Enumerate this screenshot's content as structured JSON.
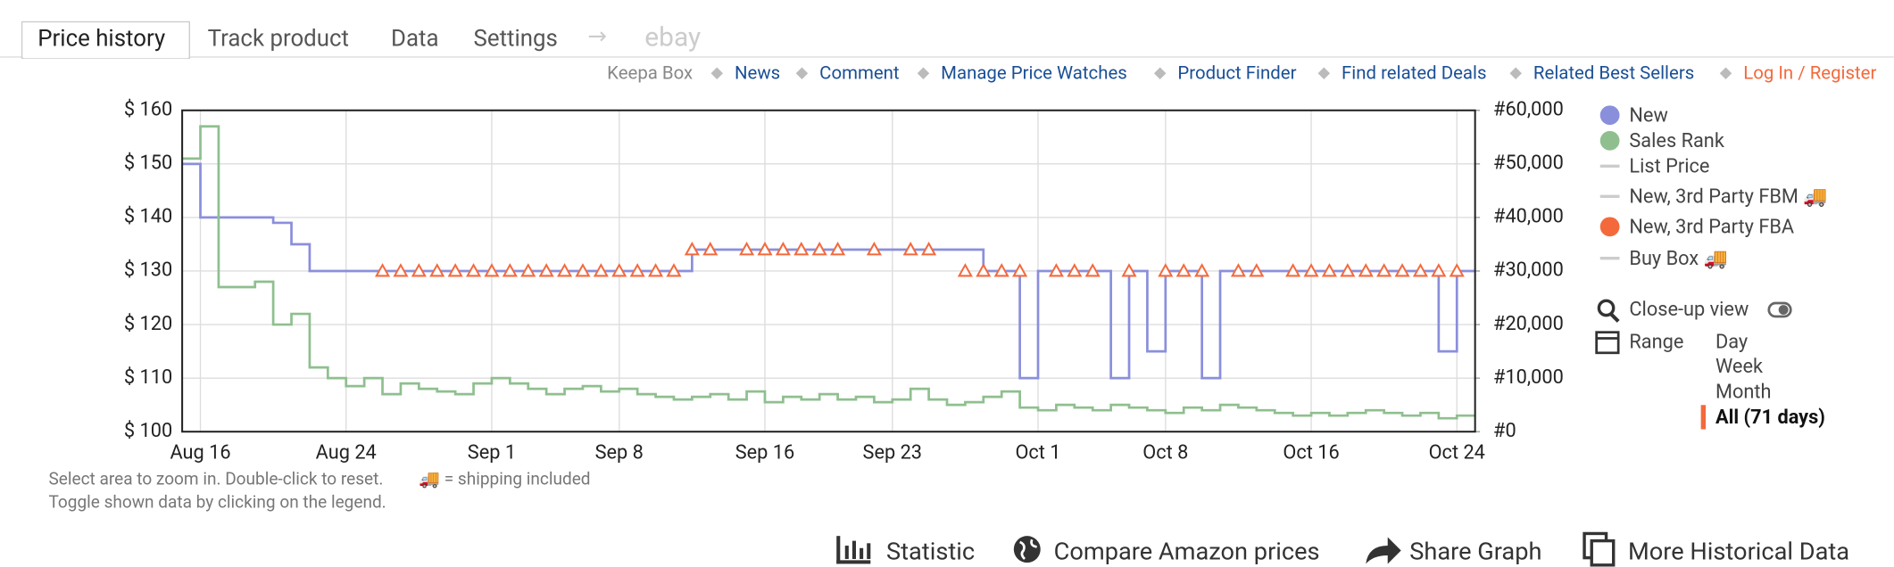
{
  "tabs": [
    "Price history",
    "Track product",
    "Data",
    "Settings",
    "→",
    "ebay"
  ],
  "links": [
    "Keepa Box",
    "News",
    "Comment",
    "Manage Price Watches",
    "Product Finder",
    "Find related Deals",
    "Related Best Sellers",
    "Log In / Register"
  ],
  "controls": {
    "closeup": "Close-up view",
    "range": "Range",
    "ranges": [
      "Day",
      "Week",
      "Month",
      "All (71 days)"
    ]
  },
  "notes": [
    "Select area to zoom in. Double-click to reset.",
    "🚚 = shipping included",
    "Toggle shown data by clicking on the legend."
  ],
  "buttons": [
    "Statistic",
    "Compare Amazon prices",
    "Share Graph",
    "More Historical Data"
  ],
  "chart_data": {
    "type": "line",
    "grid": true,
    "xlim": [
      "Aug 15",
      "Oct 25"
    ],
    "xticks": [
      "Aug 16",
      "Aug 24",
      "Sep 1",
      "Sep 8",
      "Sep 16",
      "Sep 23",
      "Oct 1",
      "Oct 8",
      "Oct 16",
      "Oct 24"
    ],
    "ylim": [
      100,
      160
    ],
    "yticks": [
      {
        "value": 100,
        "label": "$ 100"
      },
      {
        "value": 110,
        "label": "$ 110"
      },
      {
        "value": 120,
        "label": "$ 120"
      },
      {
        "value": 130,
        "label": "$ 130"
      },
      {
        "value": 140,
        "label": "$ 140"
      },
      {
        "value": 150,
        "label": "$ 150"
      },
      {
        "value": 160,
        "label": "$ 160"
      }
    ],
    "y2lim": [
      0,
      60000
    ],
    "y2ticks": [
      {
        "value": 0,
        "label": "#0"
      },
      {
        "value": 10000,
        "label": "#10,000"
      },
      {
        "value": 20000,
        "label": "#20,000"
      },
      {
        "value": 30000,
        "label": "#30,000"
      },
      {
        "value": 40000,
        "label": "#40,000"
      },
      {
        "value": 50000,
        "label": "#50,000"
      },
      {
        "value": 60000,
        "label": "#60,000"
      }
    ],
    "series": [
      {
        "name": "New",
        "color": "#8a8fdc",
        "x": [
          "Aug 15",
          "Aug 16",
          "Aug 20",
          "Aug 21",
          "Aug 22",
          "Sep 12",
          "Sep 28",
          "Sep 30",
          "Oct 1",
          "Oct 5",
          "Oct 6",
          "Oct 7",
          "Oct 8",
          "Oct 10",
          "Oct 11",
          "Oct 23",
          "Oct 24"
        ],
        "values": [
          150,
          140,
          139,
          135,
          130,
          134,
          130,
          110,
          130,
          110,
          130,
          115,
          130,
          110,
          130,
          115,
          130
        ]
      },
      {
        "name": "Sales Rank",
        "color": "#8fbf8f",
        "axis": "y2",
        "x": [
          "Aug 15",
          "Aug 16",
          "Aug 17",
          "Aug 19",
          "Aug 20",
          "Aug 21",
          "Aug 22",
          "Aug 23",
          "Aug 24",
          "Aug 25",
          "Aug 26",
          "Aug 27",
          "Aug 28",
          "Aug 29",
          "Aug 30",
          "Aug 31",
          "Sep 1",
          "Sep 2",
          "Sep 3",
          "Sep 4",
          "Sep 5",
          "Sep 6",
          "Sep 7",
          "Sep 8",
          "Sep 9",
          "Sep 10",
          "Sep 11",
          "Sep 12",
          "Sep 13",
          "Sep 14",
          "Sep 15",
          "Sep 16",
          "Sep 17",
          "Sep 18",
          "Sep 19",
          "Sep 20",
          "Sep 21",
          "Sep 22",
          "Sep 23",
          "Sep 24",
          "Sep 25",
          "Sep 26",
          "Sep 27",
          "Sep 28",
          "Sep 29",
          "Sep 30",
          "Oct 1",
          "Oct 2",
          "Oct 3",
          "Oct 4",
          "Oct 5",
          "Oct 6",
          "Oct 7",
          "Oct 8",
          "Oct 9",
          "Oct 10",
          "Oct 11",
          "Oct 12",
          "Oct 13",
          "Oct 14",
          "Oct 15",
          "Oct 16",
          "Oct 17",
          "Oct 18",
          "Oct 19",
          "Oct 20",
          "Oct 21",
          "Oct 22",
          "Oct 23",
          "Oct 24"
        ],
        "values": [
          51000,
          57000,
          27000,
          28000,
          20000,
          22000,
          12000,
          10000,
          8500,
          10000,
          7000,
          9000,
          8000,
          7500,
          7000,
          9000,
          10000,
          9000,
          8000,
          7000,
          8000,
          8500,
          7500,
          8000,
          7000,
          6500,
          6000,
          6500,
          7000,
          6000,
          7500,
          5500,
          6500,
          6000,
          7000,
          6000,
          6500,
          5500,
          6000,
          8000,
          6000,
          5000,
          5500,
          6500,
          7500,
          4500,
          4000,
          5000,
          4500,
          4000,
          5000,
          4500,
          4000,
          3500,
          4500,
          4000,
          5000,
          4500,
          4000,
          3500,
          3000,
          3500,
          3000,
          3500,
          4000,
          3500,
          3000,
          3500,
          2500,
          3000
        ]
      },
      {
        "name": "List Price",
        "color": "#cccccc"
      },
      {
        "name": "New, 3rd Party FBM 🚚",
        "color": "#cccccc"
      },
      {
        "name": "New, 3rd Party FBA",
        "color": "#f4693c",
        "type": "scatter",
        "x": [
          "Aug 26",
          "Aug 27",
          "Aug 28",
          "Aug 29",
          "Aug 30",
          "Aug 31",
          "Sep 1",
          "Sep 2",
          "Sep 3",
          "Sep 4",
          "Sep 5",
          "Sep 6",
          "Sep 7",
          "Sep 8",
          "Sep 9",
          "Sep 10",
          "Sep 11",
          "Sep 12",
          "Sep 13",
          "Sep 15",
          "Sep 16",
          "Sep 17",
          "Sep 18",
          "Sep 19",
          "Sep 20",
          "Sep 22",
          "Sep 24",
          "Sep 25",
          "Sep 27",
          "Sep 28",
          "Sep 29",
          "Sep 30",
          "Oct 2",
          "Oct 3",
          "Oct 4",
          "Oct 6",
          "Oct 8",
          "Oct 9",
          "Oct 10",
          "Oct 12",
          "Oct 13",
          "Oct 15",
          "Oct 16",
          "Oct 17",
          "Oct 18",
          "Oct 19",
          "Oct 20",
          "Oct 21",
          "Oct 22",
          "Oct 23",
          "Oct 24"
        ],
        "values": [
          130,
          130,
          130,
          130,
          130,
          130,
          130,
          130,
          130,
          130,
          130,
          130,
          130,
          130,
          130,
          130,
          130,
          134,
          134,
          134,
          134,
          134,
          134,
          134,
          134,
          134,
          134,
          134,
          130,
          130,
          130,
          130,
          130,
          130,
          130,
          130,
          130,
          130,
          130,
          130,
          130,
          130,
          130,
          130,
          130,
          130,
          130,
          130,
          130,
          130,
          130
        ]
      },
      {
        "name": "Buy Box 🚚",
        "color": "#cccccc"
      }
    ]
  }
}
